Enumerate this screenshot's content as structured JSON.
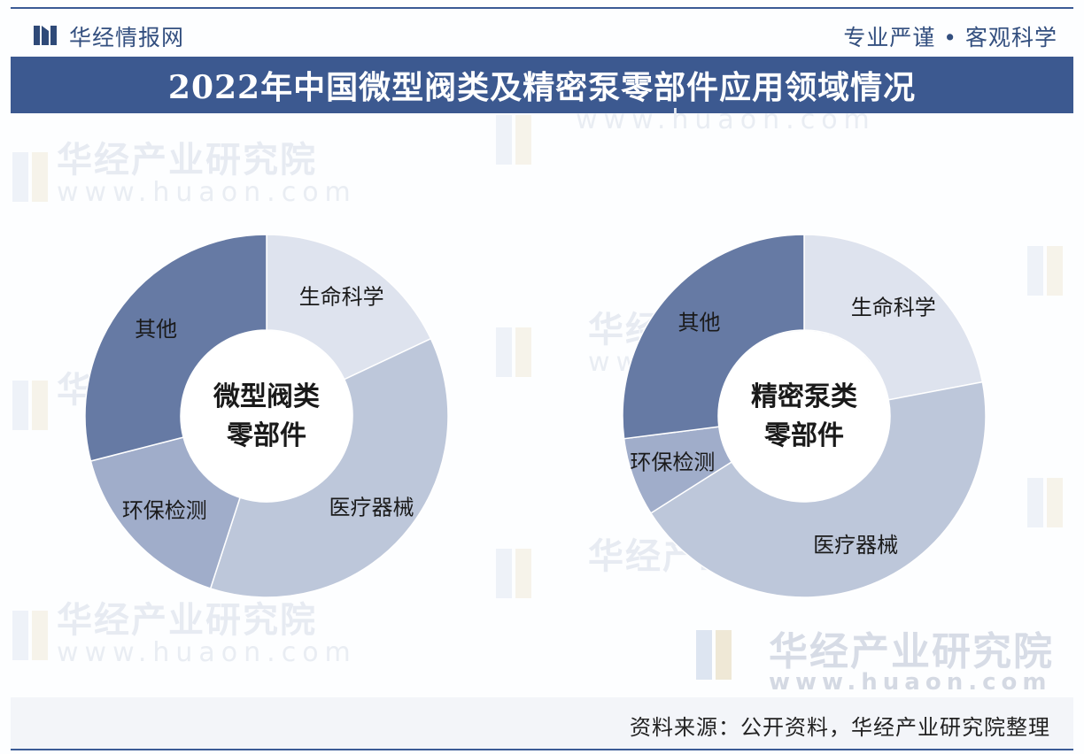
{
  "header": {
    "brand": "华经情报网",
    "slogan": "专业严谨 • 客观科学",
    "title": "2022年中国微型阀类及精密泵零部件应用领域情况"
  },
  "watermark": {
    "name": "华经产业研究院",
    "url": "www.huaon.com"
  },
  "footer": {
    "source": "资料来源：公开资料，华经产业研究院整理"
  },
  "colors": {
    "title_bar": "#3c5990",
    "life_science": "#dee3ee",
    "medical": "#bdc7da",
    "environment": "#a0adca",
    "other": "#667aa4"
  },
  "chart_data": [
    {
      "type": "pie",
      "donut": true,
      "center_label": [
        "微型阀类",
        "零部件"
      ],
      "labels": [
        "生命科学",
        "医疗器械",
        "环保检测",
        "其他"
      ],
      "values": [
        18,
        37,
        16,
        29
      ]
    },
    {
      "type": "pie",
      "donut": true,
      "center_label": [
        "精密泵类",
        "零部件"
      ],
      "labels": [
        "生命科学",
        "医疗器械",
        "环保检测",
        "其他"
      ],
      "values": [
        22,
        44,
        7,
        27
      ]
    }
  ]
}
